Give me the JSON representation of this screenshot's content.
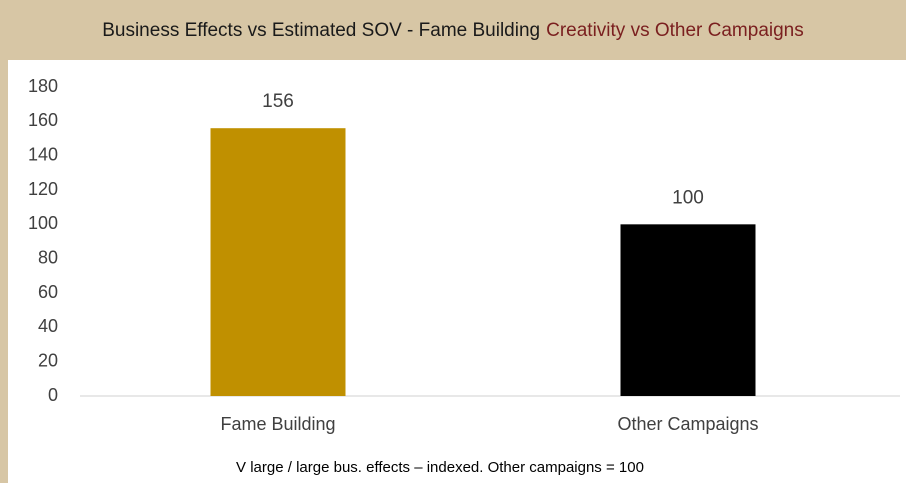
{
  "chart_data": {
    "type": "bar",
    "title": [
      "Business Effects vs Estimated SOV - Fame Building",
      "Creativity vs Other Campaigns"
    ],
    "title_colors": [
      "#1a1a1a",
      "#7a1f1f"
    ],
    "categories": [
      "Fame Building",
      "Other Campaigns"
    ],
    "values": [
      156,
      100
    ],
    "colors": [
      "#c09000",
      "#000000"
    ],
    "ylim": [
      0,
      180
    ],
    "yticks": [
      0,
      20,
      40,
      60,
      80,
      100,
      120,
      140,
      160,
      180
    ],
    "grid": false,
    "note": "V large / large bus. effects – indexed. Other campaigns = 100"
  }
}
